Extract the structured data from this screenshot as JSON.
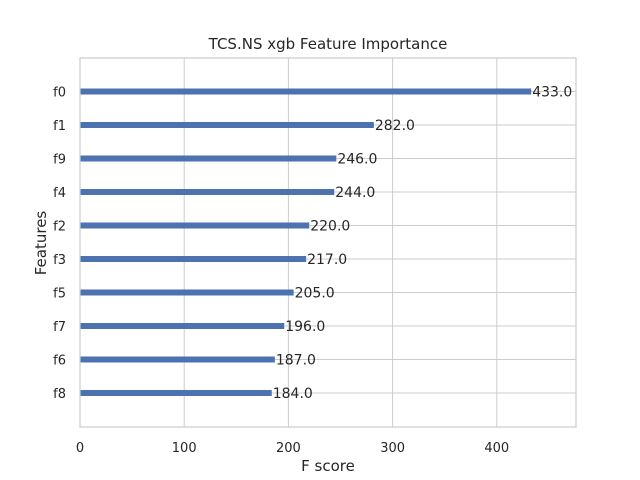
{
  "chart_data": {
    "type": "bar",
    "orientation": "horizontal",
    "title": "TCS.NS xgb Feature Importance",
    "xlabel": "F score",
    "ylabel": "Features",
    "categories": [
      "f0",
      "f1",
      "f9",
      "f4",
      "f2",
      "f3",
      "f5",
      "f7",
      "f6",
      "f8"
    ],
    "values": [
      433,
      282,
      246,
      244,
      220,
      217,
      205,
      196,
      187,
      184
    ],
    "value_labels": [
      "433.0",
      "282.0",
      "246.0",
      "244.0",
      "220.0",
      "217.0",
      "205.0",
      "196.0",
      "187.0",
      "184.0"
    ],
    "xlim": [
      0,
      476
    ],
    "xticks": [
      0,
      100,
      200,
      300,
      400
    ],
    "grid": true,
    "bar_color": "#4c72b0"
  }
}
